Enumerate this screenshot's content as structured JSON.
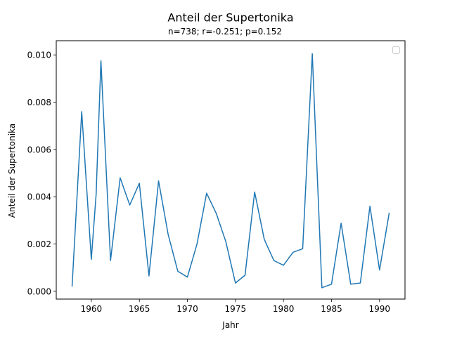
{
  "chart_data": {
    "type": "line",
    "title": "Anteil der Supertonika",
    "subtitle": "n=738; r=-0.251; p=0.152",
    "xlabel": "Jahr",
    "ylabel": "Anteil der Supertonika",
    "xlim": [
      1956.35,
      1992.65
    ],
    "ylim": [
      -0.00033,
      0.0106
    ],
    "xticks": [
      1960,
      1965,
      1970,
      1975,
      1980,
      1985,
      1990
    ],
    "yticks": [
      0.0,
      0.002,
      0.004,
      0.006,
      0.008,
      0.01
    ],
    "ytick_labels": [
      "0.000",
      "0.002",
      "0.004",
      "0.006",
      "0.008",
      "0.010"
    ],
    "grid": false,
    "legend": "top-right",
    "series": [
      {
        "color": "#1f77b4",
        "x": [
          1958,
          1959,
          1960,
          1960.5,
          1961,
          1962,
          1963,
          1964,
          1965,
          1966,
          1967,
          1968,
          1969,
          1970,
          1971,
          1972,
          1973,
          1974,
          1975,
          1976,
          1977,
          1978,
          1979,
          1980,
          1981,
          1982,
          1983,
          1984,
          1985,
          1986,
          1987,
          1988,
          1989,
          1990,
          1991
        ],
        "y": [
          0.00022,
          0.0076,
          0.00135,
          0.0041,
          0.00975,
          0.0013,
          0.0048,
          0.00365,
          0.00457,
          0.00065,
          0.00467,
          0.0024,
          0.00085,
          0.0006,
          0.002,
          0.00415,
          0.0033,
          0.0021,
          0.00035,
          0.00068,
          0.0042,
          0.0022,
          0.0013,
          0.0011,
          0.00165,
          0.0018,
          0.01005,
          0.00015,
          0.0003,
          0.00288,
          0.0003,
          0.00035,
          0.0036,
          0.0009,
          0.0033
        ]
      }
    ]
  }
}
